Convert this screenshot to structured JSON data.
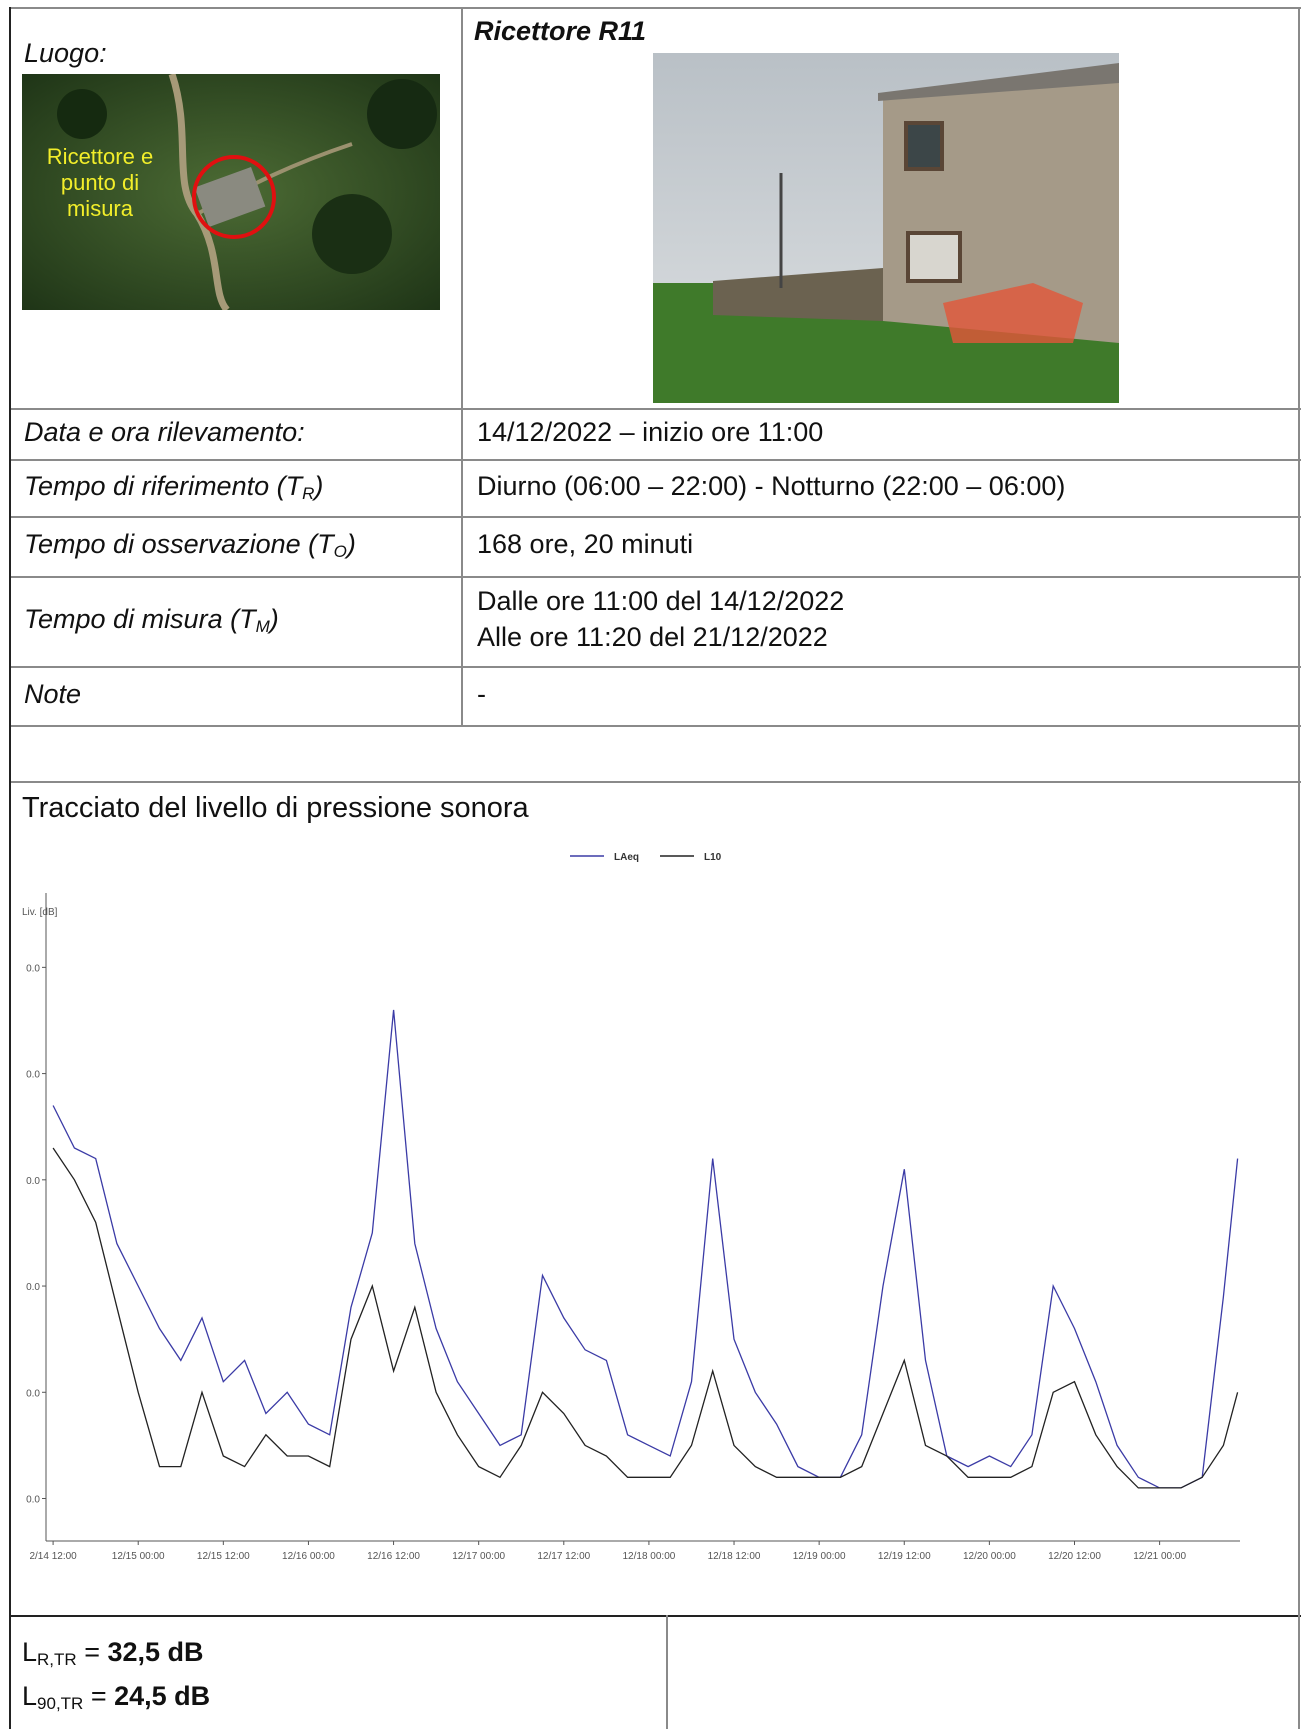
{
  "location": {
    "label": "Luogo:",
    "map_text": [
      "Ricettore e",
      "punto di",
      "misura"
    ]
  },
  "receptor": {
    "title": "Ricettore R11"
  },
  "rows": [
    {
      "label": "Data e ora rilevamento:",
      "value": [
        "14/12/2022 – inizio ore 11:00"
      ]
    },
    {
      "label": "Tempo di riferimento (T",
      "label_sub": "R",
      "label_end": ")",
      "value": [
        "Diurno (06:00 – 22:00) - Notturno (22:00 – 06:00)"
      ]
    },
    {
      "label": "Tempo di osservazione (T",
      "label_sub": "O",
      "label_end": ")",
      "value": [
        "168 ore, 20 minuti"
      ]
    },
    {
      "label": "Tempo di misura (T",
      "label_sub": "M",
      "label_end": ")",
      "value": [
        "Dalle ore 11:00 del 14/12/2022",
        "Alle ore 11:20 del 21/12/2022"
      ]
    },
    {
      "label": "Note",
      "value": [
        "-"
      ]
    }
  ],
  "chart_section": {
    "title": "Tracciato del livello di pressione sonora"
  },
  "chart_data": {
    "type": "line",
    "y_label": "Liv. [dB]",
    "x": [
      "12/14 12:00",
      "12/14 15:00",
      "12/14 18:00",
      "12/14 21:00",
      "12/15 00:00",
      "12/15 03:00",
      "12/15 06:00",
      "12/15 09:00",
      "12/15 12:00",
      "12/15 15:00",
      "12/15 18:00",
      "12/15 21:00",
      "12/16 00:00",
      "12/16 03:00",
      "12/16 06:00",
      "12/16 09:00",
      "12/16 12:00",
      "12/16 15:00",
      "12/16 18:00",
      "12/16 21:00",
      "12/17 00:00",
      "12/17 03:00",
      "12/17 06:00",
      "12/17 09:00",
      "12/17 12:00",
      "12/17 15:00",
      "12/17 18:00",
      "12/17 21:00",
      "12/18 00:00",
      "12/18 03:00",
      "12/18 06:00",
      "12/18 09:00",
      "12/18 12:00",
      "12/18 15:00",
      "12/18 18:00",
      "12/18 21:00",
      "12/19 00:00",
      "12/19 03:00",
      "12/19 06:00",
      "12/19 09:00",
      "12/19 12:00",
      "12/19 15:00",
      "12/19 18:00",
      "12/19 21:00",
      "12/20 00:00",
      "12/20 03:00",
      "12/20 06:00",
      "12/20 09:00",
      "12/20 12:00",
      "12/20 15:00",
      "12/20 18:00",
      "12/20 21:00",
      "12/21 00:00",
      "12/21 03:00",
      "12/21 06:00",
      "12/21 09:00",
      "12/21 11:00"
    ],
    "series": [
      {
        "name": "LAeq",
        "color": "#3b3ba6",
        "values": [
          57,
          53,
          52,
          44,
          40,
          36,
          33,
          37,
          31,
          33,
          28,
          30,
          27,
          26,
          38,
          45,
          66,
          44,
          36,
          31,
          28,
          25,
          26,
          41,
          37,
          34,
          33,
          26,
          25,
          24,
          31,
          52,
          35,
          30,
          27,
          23,
          22,
          22,
          26,
          40,
          51,
          33,
          24,
          23,
          24,
          23,
          26,
          40,
          36,
          31,
          25,
          22,
          21,
          21,
          22,
          39,
          52
        ]
      },
      {
        "name": "L10",
        "color": "#222222",
        "values": [
          53,
          50,
          46,
          38,
          30,
          23,
          23,
          30,
          24,
          23,
          26,
          24,
          24,
          23,
          35,
          40,
          32,
          38,
          30,
          26,
          23,
          22,
          25,
          30,
          28,
          25,
          24,
          22,
          22,
          22,
          25,
          32,
          25,
          23,
          22,
          22,
          22,
          22,
          23,
          28,
          33,
          25,
          24,
          22,
          22,
          22,
          23,
          30,
          31,
          26,
          23,
          21,
          21,
          21,
          22,
          25,
          30
        ]
      }
    ],
    "xlim": [
      "12/14 11:00",
      "12/21 11:20"
    ],
    "xticks": [
      {
        "value": "12/14 12:00",
        "label": "2/14 12:00"
      },
      "12/15 00:00",
      "12/15 12:00",
      "12/16 00:00",
      "12/16 12:00",
      "12/17 00:00",
      "12/17 12:00",
      "12/18 00:00",
      "12/18 12:00",
      "12/19 00:00",
      "12/19 12:00",
      "12/20 00:00",
      "12/20 12:00",
      "12/21 00:00"
    ],
    "ylim": [
      16,
      77
    ],
    "yticks": [
      {
        "value": 20,
        "label": "0.0"
      },
      {
        "value": 30,
        "label": "0.0"
      },
      {
        "value": 40,
        "label": "0.0"
      },
      {
        "value": 50,
        "label": "0.0"
      },
      {
        "value": 60,
        "label": "0.0"
      },
      {
        "value": 70,
        "label": "0.0"
      }
    ],
    "legend": "top"
  },
  "results": [
    {
      "symbol": "L",
      "sub": "R,TR",
      "eq": " = ",
      "value": "32,5 dB"
    },
    {
      "symbol": "L",
      "sub": "90,TR",
      "eq": " = ",
      "value": "24,5 dB"
    }
  ]
}
